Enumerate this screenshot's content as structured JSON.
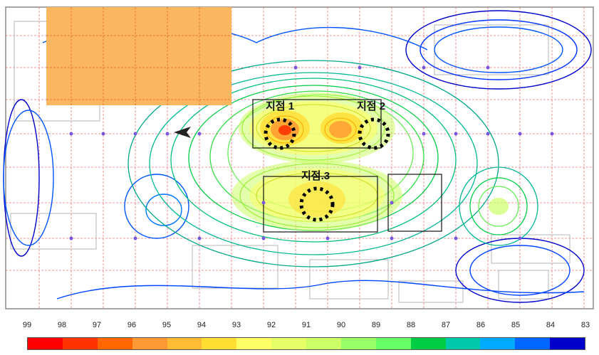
{
  "points": [
    {
      "label": "지점 1"
    },
    {
      "label": "지점 2"
    },
    {
      "label": "지점.3"
    }
  ],
  "colorbar": {
    "ticks": [
      "99",
      "98",
      "97",
      "96",
      "95",
      "94",
      "93",
      "92",
      "91",
      "90",
      "89",
      "88",
      "87",
      "86",
      "85",
      "84",
      "83"
    ],
    "colors": [
      "#ff0000",
      "#ff3300",
      "#ff6600",
      "#ff9933",
      "#ffbb33",
      "#ffdd33",
      "#ffff66",
      "#e6ff66",
      "#ccff66",
      "#99ff66",
      "#66ff66",
      "#00cc44",
      "#00c8aa",
      "#00aaff",
      "#0066ff",
      "#0000cc"
    ]
  },
  "accent": {
    "orange_block": "#fbb660",
    "grid_red": "#e55555"
  }
}
